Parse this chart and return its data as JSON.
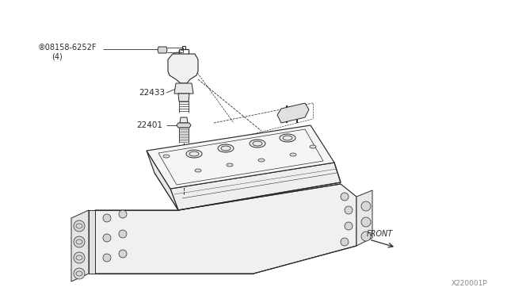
{
  "background_color": "#ffffff",
  "fig_width": 6.4,
  "fig_height": 3.72,
  "dpi": 100,
  "label_08158": "®08158-6252F",
  "label_08158_sub": "(4)",
  "label_22433": "22433",
  "label_22401": "22401",
  "label_front": "FRONT",
  "label_diagram_id": "X220001P",
  "line_color": "#2a2a2a",
  "text_color": "#2a2a2a",
  "lw_main": 0.8,
  "lw_thin": 0.5,
  "lw_dashed": 0.6
}
